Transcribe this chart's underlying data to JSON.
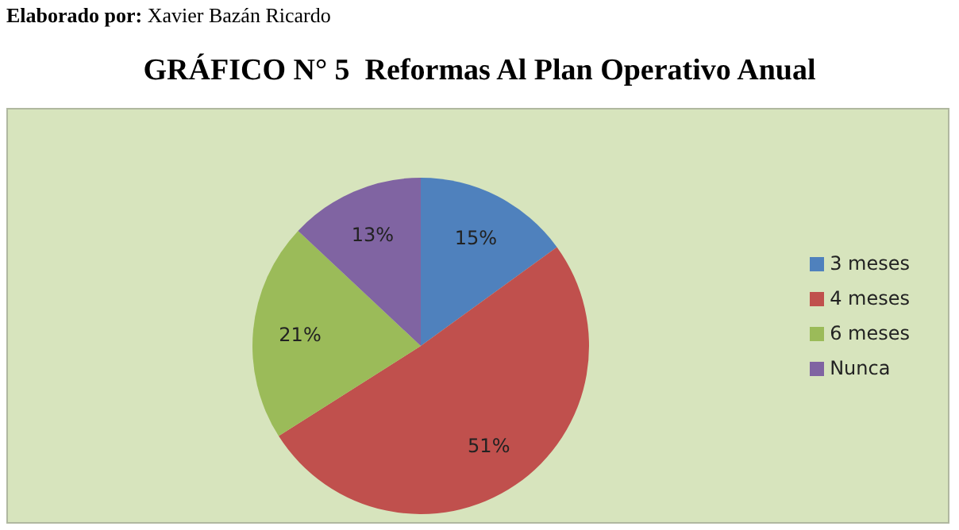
{
  "chart_data": {
    "type": "pie",
    "title": "GRÁFICO N° 5  Reformas Al Plan Operativo Anual",
    "annotations": [
      "Elaborado por: Xavier Bazán Ricardo"
    ],
    "categories": [
      "3 meses",
      "4 meses",
      "6 meses",
      "Nunca"
    ],
    "values": [
      15,
      51,
      21,
      13
    ],
    "colors": [
      "#4f81bd",
      "#c0504d",
      "#9bbb59",
      "#8064a2"
    ],
    "value_labels": [
      "15%",
      "51%",
      "21%",
      "13%"
    ],
    "legend": "right"
  }
}
